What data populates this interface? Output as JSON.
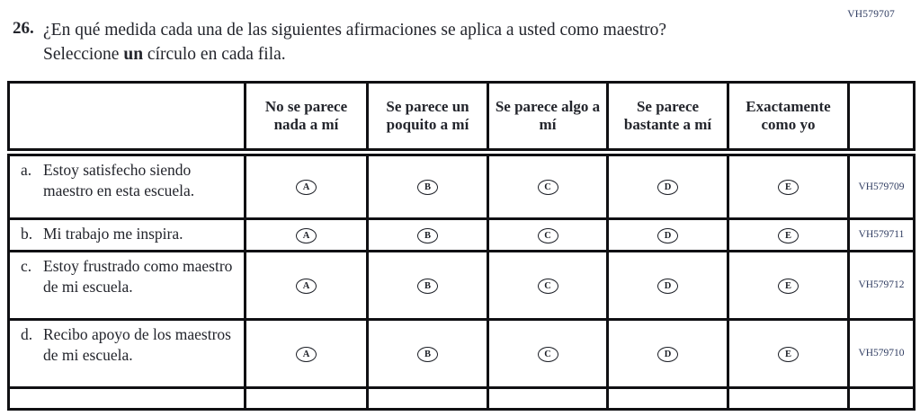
{
  "page": {
    "top_right_code": "VH579707"
  },
  "question": {
    "number": "26.",
    "text_before_bold": "¿En qué medida cada una de las siguientes afirmaciones se aplica a usted como maestro? Seleccione ",
    "bold_word": "un",
    "text_after_bold": " círculo en cada fila."
  },
  "table": {
    "columns": [
      "No se parece nada a mí",
      "Se parece un poquito a mí",
      "Se parece algo a mí",
      "Se parece bastante a mí",
      "Exactamente como yo"
    ],
    "options": [
      "A",
      "B",
      "C",
      "D",
      "E"
    ],
    "rows": [
      {
        "letter": "a.",
        "statement": "Estoy satisfecho siendo maestro en esta escuela.",
        "code": "VH579709"
      },
      {
        "letter": "b.",
        "statement": "Mi trabajo me inspira.",
        "code": "VH579711"
      },
      {
        "letter": "c.",
        "statement": "Estoy frustrado como maestro de mi escuela.",
        "code": "VH579712"
      },
      {
        "letter": "d.",
        "statement": "Recibo apoyo de los maestros de mi escuela.",
        "code": "VH579710"
      }
    ]
  },
  "colors": {
    "text": "#23252c",
    "code_text": "#2e3b60",
    "border": "#101013"
  }
}
